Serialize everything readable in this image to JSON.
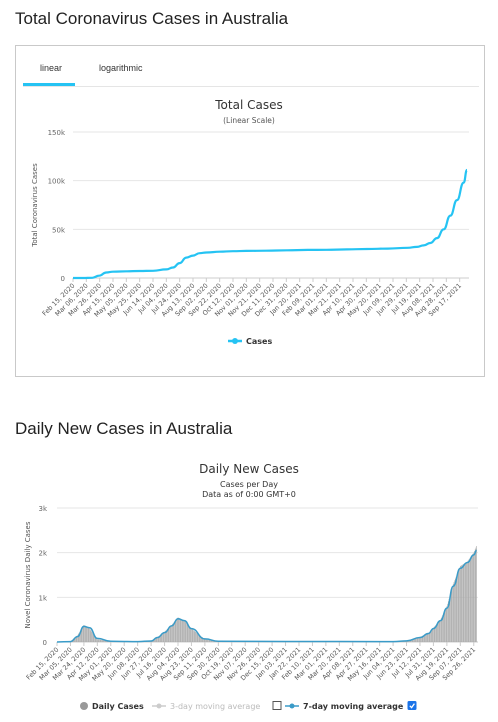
{
  "page": {
    "title1": "Total Coronavirus Cases in Australia",
    "title2": "Daily New Cases in Australia"
  },
  "tabs": [
    {
      "label": "linear",
      "active": true
    },
    {
      "label": "logarithmic",
      "active": false
    }
  ],
  "colors": {
    "accent": "#25c3f3",
    "daily_bar": "#aaaaaa",
    "moving_avg": "#3a9bc8",
    "grid": "#e6e6e6"
  },
  "chart_data": [
    {
      "type": "line",
      "title": "Total Cases",
      "subtitle": "(Linear Scale)",
      "ylabel": "Total Coronavirus Cases",
      "xlabel": "",
      "ylim": [
        0,
        150000
      ],
      "yticks": [
        0,
        50000,
        100000,
        150000
      ],
      "ytick_labels": [
        "0",
        "50k",
        "100k",
        "150k"
      ],
      "grid": true,
      "legend_position": "bottom",
      "x_tick_labels": [
        "Feb 15, 2020",
        "Mar 06, 2020",
        "Mar 26, 2020",
        "Apr 15, 2020",
        "May 05, 2020",
        "May 25, 2020",
        "Jun 14, 2020",
        "Jul 04, 2020",
        "Jul 24, 2020",
        "Aug 13, 2020",
        "Sep 02, 2020",
        "Sep 22, 2020",
        "Oct 12, 2020",
        "Nov 01, 2020",
        "Nov 21, 2020",
        "Dec 11, 2020",
        "Dec 31, 2020",
        "Jan 20, 2021",
        "Feb 09, 2021",
        "Mar 01, 2021",
        "Mar 21, 2021",
        "Apr 10, 2021",
        "Apr 30, 2021",
        "May 20, 2021",
        "Jun 09, 2021",
        "Jun 29, 2021",
        "Jul 19, 2021",
        "Aug 08, 2021",
        "Aug 28, 2021",
        "Sep 17, 2021"
      ],
      "series": [
        {
          "name": "Cases",
          "color": "#25c3f3",
          "x": [
            "2020-02-15",
            "2020-03-01",
            "2020-03-15",
            "2020-03-25",
            "2020-04-05",
            "2020-04-15",
            "2020-05-05",
            "2020-05-25",
            "2020-06-14",
            "2020-07-04",
            "2020-07-14",
            "2020-07-24",
            "2020-08-03",
            "2020-08-13",
            "2020-08-23",
            "2020-09-02",
            "2020-09-22",
            "2020-10-12",
            "2020-11-01",
            "2020-12-01",
            "2021-01-01",
            "2021-02-01",
            "2021-03-01",
            "2021-04-01",
            "2021-05-01",
            "2021-06-01",
            "2021-07-01",
            "2021-07-15",
            "2021-07-25",
            "2021-08-04",
            "2021-08-14",
            "2021-08-24",
            "2021-09-03",
            "2021-09-13",
            "2021-09-23",
            "2021-09-28"
          ],
          "values": [
            15,
            30,
            200,
            2400,
            5700,
            6450,
            6900,
            7150,
            7400,
            8800,
            10800,
            15300,
            21000,
            23000,
            25500,
            26200,
            27000,
            27500,
            27800,
            28000,
            28500,
            28900,
            29000,
            29400,
            29800,
            30200,
            31000,
            32000,
            33500,
            36000,
            41000,
            50000,
            64000,
            80000,
            98000,
            111000
          ]
        }
      ]
    },
    {
      "type": "bar",
      "title": "Daily New Cases",
      "subtitle": "Cases per Day",
      "subtitle2": "Data as of 0:00 GMT+0",
      "ylabel": "Novel Coronavirus Daily Cases",
      "ylim": [
        0,
        3000
      ],
      "yticks": [
        0,
        1000,
        2000,
        3000
      ],
      "ytick_labels": [
        "0",
        "1k",
        "2k",
        "3k"
      ],
      "grid": true,
      "legend_position": "bottom",
      "x_tick_labels": [
        "Feb 15, 2020",
        "Mar 05, 2020",
        "Mar 24, 2020",
        "Apr 12, 2020",
        "May 01, 2020",
        "May 20, 2020",
        "Jun 08, 2020",
        "Jun 27, 2020",
        "Jul 16, 2020",
        "Aug 04, 2020",
        "Aug 23, 2020",
        "Sep 11, 2020",
        "Sep 30, 2020",
        "Oct 19, 2020",
        "Nov 07, 2020",
        "Nov 26, 2020",
        "Dec 15, 2020",
        "Jan 03, 2021",
        "Jan 22, 2021",
        "Feb 10, 2021",
        "Mar 01, 2021",
        "Mar 20, 2021",
        "Apr 08, 2021",
        "Apr 27, 2021",
        "May 16, 2021",
        "Jun 04, 2021",
        "Jun 23, 2021",
        "Jul 12, 2021",
        "Jul 31, 2021",
        "Aug 19, 2021",
        "Sep 07, 2021",
        "Sep 26, 2021"
      ],
      "series": [
        {
          "name": "Daily Cases",
          "color": "#aaaaaa",
          "shape": "bar",
          "x": [
            "2020-02-15",
            "2020-03-05",
            "2020-03-15",
            "2020-03-24",
            "2020-04-01",
            "2020-04-12",
            "2020-05-01",
            "2020-06-08",
            "2020-06-27",
            "2020-07-06",
            "2020-07-16",
            "2020-07-26",
            "2020-08-04",
            "2020-08-13",
            "2020-08-23",
            "2020-09-11",
            "2020-09-30",
            "2021-01-03",
            "2021-06-04",
            "2021-06-23",
            "2021-07-12",
            "2021-07-24",
            "2021-07-31",
            "2021-08-10",
            "2021-08-19",
            "2021-08-28",
            "2021-09-07",
            "2021-09-17",
            "2021-09-26",
            "2021-09-30"
          ],
          "values": [
            0,
            15,
            150,
            380,
            300,
            60,
            15,
            10,
            25,
            110,
            230,
            380,
            550,
            480,
            300,
            60,
            15,
            15,
            10,
            30,
            110,
            200,
            320,
            500,
            800,
            1300,
            1700,
            1800,
            2000,
            2150
          ]
        },
        {
          "name": "3-day moving average",
          "color": "#cccccc",
          "enabled": false
        },
        {
          "name": "7-day moving average",
          "color": "#3a9bc8",
          "enabled": true,
          "x": [
            "2020-02-15",
            "2020-03-05",
            "2020-03-15",
            "2020-03-24",
            "2020-04-01",
            "2020-04-12",
            "2020-05-01",
            "2020-06-08",
            "2020-06-27",
            "2020-07-06",
            "2020-07-16",
            "2020-07-26",
            "2020-08-04",
            "2020-08-13",
            "2020-08-23",
            "2020-09-11",
            "2020-09-30",
            "2021-01-03",
            "2021-06-04",
            "2021-06-23",
            "2021-07-12",
            "2021-07-24",
            "2021-07-31",
            "2021-08-10",
            "2021-08-19",
            "2021-08-28",
            "2021-09-07",
            "2021-09-17",
            "2021-09-26",
            "2021-09-30"
          ],
          "values": [
            0,
            10,
            120,
            350,
            320,
            80,
            15,
            10,
            22,
            100,
            210,
            360,
            520,
            480,
            300,
            70,
            15,
            12,
            10,
            25,
            100,
            190,
            300,
            480,
            760,
            1250,
            1650,
            1780,
            1950,
            2050
          ]
        }
      ]
    }
  ],
  "legend2": {
    "daily": "Daily Cases",
    "ma3": "3-day moving average",
    "ma7": "7-day moving average"
  }
}
